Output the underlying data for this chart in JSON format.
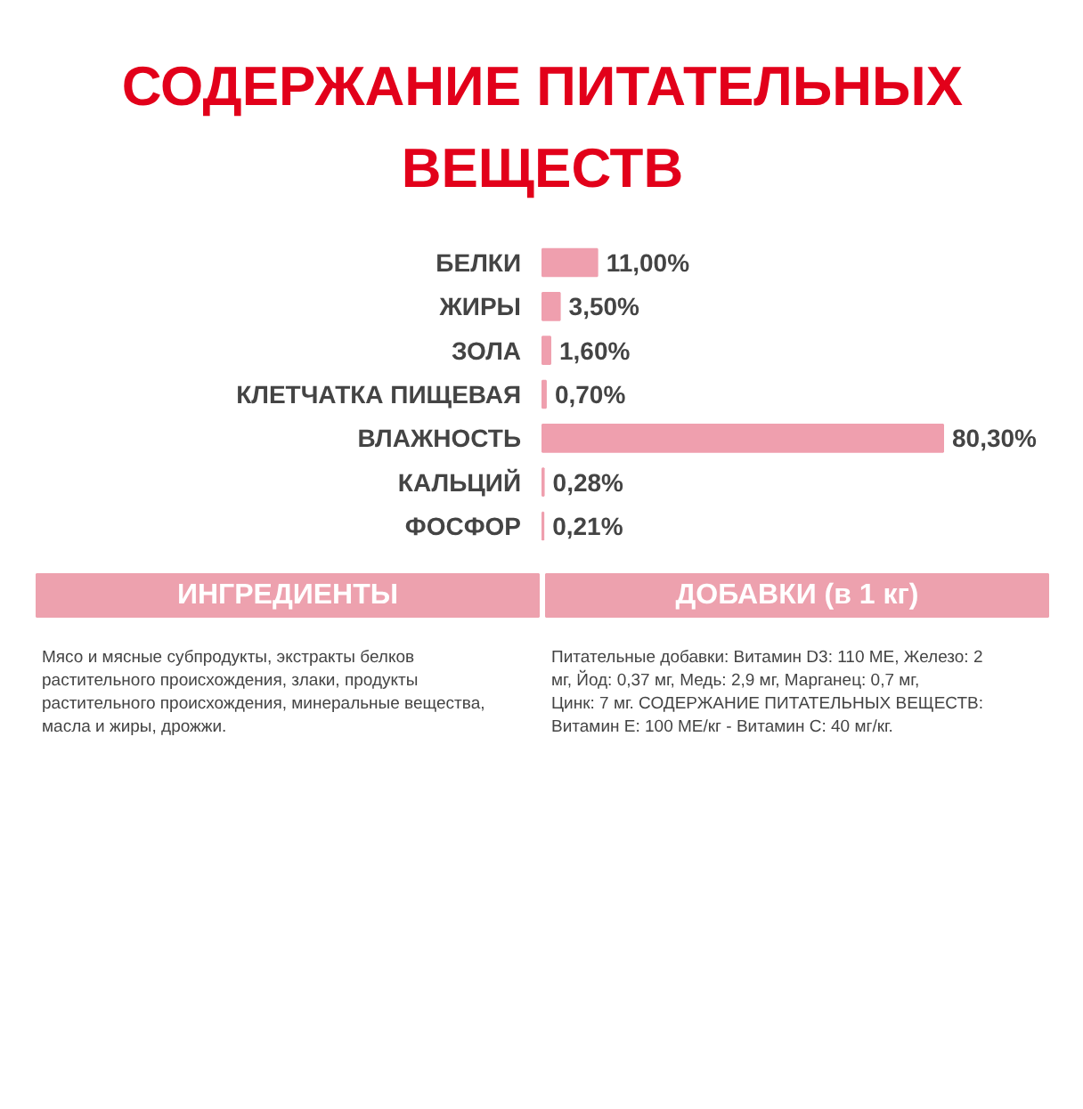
{
  "chart_data": {
    "type": "bar",
    "orientation": "horizontal",
    "title": "СОДЕРЖАНИЕ ПИТАТЕЛЬНЫХ ВЕЩЕСТВ",
    "categories": [
      "БЕЛКИ",
      "ЖИРЫ",
      "ЗОЛА",
      "КЛЕТЧАТКА ПИЩЕВАЯ",
      "ВЛАЖНОСТЬ",
      "КАЛЬЦИЙ",
      "ФОСФОР"
    ],
    "values": [
      11.0,
      3.5,
      1.6,
      0.7,
      80.3,
      0.28,
      0.21
    ],
    "value_labels": [
      "11,00%",
      "3,50%",
      "1,60%",
      "0,70%",
      "80,30%",
      "0,28%",
      "0,21%"
    ],
    "color": "#ef9fae",
    "tick_labels": "y",
    "grid": false,
    "annotations": [
      "ИНГРЕДИЕНТЫ",
      "Мясо и мясные субпродукты, экстракты белков растительного происхождения, злаки, продукты растительного происхождения, минеральные вещества, масла и жиры, дрожжи.",
      "ДОБАВКИ (в 1 кг)",
      "Питательные добавки: Витамин D3: 110 МЕ, Железо: 2 мг, Йод: 0,37 мг, Медь: 2,9 мг, Марганец: 0,7 мг, Цинк: 7 мг. СОДЕРЖАНИЕ ПИТАТЕЛЬНЫХ ВЕЩЕСТВ: Витамин Е: 100 МЕ/кг - Витамин С: 40 мг/кг."
    ]
  }
}
